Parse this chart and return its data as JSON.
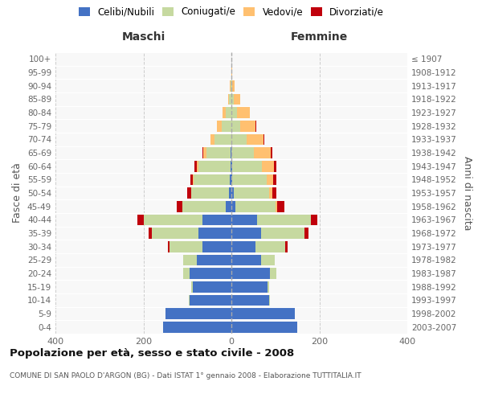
{
  "age_groups": [
    "0-4",
    "5-9",
    "10-14",
    "15-19",
    "20-24",
    "25-29",
    "30-34",
    "35-39",
    "40-44",
    "45-49",
    "50-54",
    "55-59",
    "60-64",
    "65-69",
    "70-74",
    "75-79",
    "80-84",
    "85-89",
    "90-94",
    "95-99",
    "100+"
  ],
  "birth_years": [
    "2003-2007",
    "1998-2002",
    "1993-1997",
    "1988-1992",
    "1983-1987",
    "1978-1982",
    "1973-1977",
    "1968-1972",
    "1963-1967",
    "1958-1962",
    "1953-1957",
    "1948-1952",
    "1943-1947",
    "1938-1942",
    "1933-1937",
    "1928-1932",
    "1923-1927",
    "1918-1922",
    "1913-1917",
    "1908-1912",
    "≤ 1907"
  ],
  "maschi": {
    "celibi": [
      155,
      150,
      95,
      88,
      95,
      78,
      65,
      75,
      65,
      12,
      6,
      3,
      2,
      1,
      0,
      0,
      0,
      0,
      0,
      0,
      0
    ],
    "coniugati": [
      0,
      0,
      2,
      4,
      15,
      32,
      75,
      105,
      135,
      100,
      85,
      82,
      72,
      55,
      38,
      22,
      12,
      5,
      2,
      0,
      0
    ],
    "vedovi": [
      0,
      0,
      0,
      0,
      0,
      0,
      0,
      0,
      0,
      0,
      1,
      2,
      5,
      8,
      10,
      10,
      8,
      3,
      1,
      0,
      0
    ],
    "divorziati": [
      0,
      0,
      0,
      0,
      0,
      0,
      5,
      8,
      13,
      12,
      8,
      6,
      5,
      2,
      0,
      0,
      0,
      0,
      0,
      0,
      0
    ]
  },
  "femmine": {
    "nubili": [
      150,
      145,
      85,
      82,
      88,
      68,
      55,
      68,
      58,
      10,
      5,
      2,
      1,
      0,
      0,
      0,
      0,
      0,
      0,
      0,
      0
    ],
    "coniugate": [
      0,
      0,
      2,
      4,
      15,
      30,
      68,
      98,
      122,
      90,
      80,
      78,
      68,
      52,
      35,
      20,
      12,
      5,
      2,
      0,
      0
    ],
    "vedove": [
      0,
      0,
      0,
      0,
      0,
      0,
      0,
      0,
      0,
      5,
      8,
      15,
      28,
      38,
      38,
      35,
      30,
      15,
      5,
      2,
      0
    ],
    "divorziate": [
      0,
      0,
      0,
      0,
      0,
      0,
      5,
      10,
      15,
      15,
      10,
      8,
      5,
      3,
      1,
      1,
      0,
      0,
      0,
      0,
      0
    ]
  },
  "color_celibi": "#4472C4",
  "color_coniugati": "#C6D9A0",
  "color_vedovi": "#FFC070",
  "color_divorziati": "#C0000C",
  "xlim": 400,
  "title": "Popolazione per età, sesso e stato civile - 2008",
  "subtitle": "COMUNE DI SAN PAOLO D'ARGON (BG) - Dati ISTAT 1° gennaio 2008 - Elaborazione TUTTITALIA.IT",
  "ylabel_left": "Fasce di età",
  "ylabel_right": "Anni di nascita",
  "xlabel_left": "Maschi",
  "xlabel_right": "Femmine"
}
